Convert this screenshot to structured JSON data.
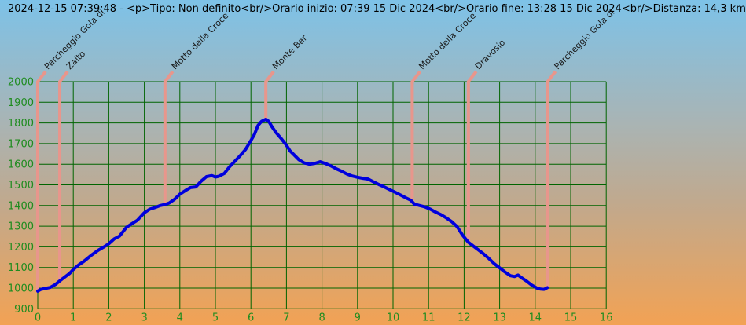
{
  "header": {
    "title": "2024-12-15 07:39:48 - <p>Tipo: Non definito<br/>Orario inizio: 07:39 15 Dic 2024<br/>Orario fine: 13:28 15 Dic 2024<br/>Distanza: 14,3 km"
  },
  "chart_data": {
    "type": "line",
    "title": "2024-12-15 07:39:48 - <p>Tipo: Non definito<br/>Orario inizio: 07:39 15 Dic 2024<br/>Orario fine: 13:28 15 Dic 2024<br/>Distanza: 14,3 km",
    "xlabel": "",
    "ylabel": "",
    "x_unit": "km",
    "y_unit": "m",
    "xlim": [
      0,
      16
    ],
    "ylim": [
      900,
      2000
    ],
    "x_ticks": [
      0,
      1,
      2,
      3,
      4,
      5,
      6,
      7,
      8,
      9,
      10,
      11,
      12,
      13,
      14,
      15,
      16
    ],
    "y_ticks": [
      900,
      1000,
      1100,
      1200,
      1300,
      1400,
      1500,
      1600,
      1700,
      1800,
      1900,
      2000
    ],
    "grid": true,
    "legend": false,
    "colors": {
      "background_top": "#7dc2e8",
      "background_bottom": "#f2a254",
      "grid": "#006400",
      "tick_label": "#1f8c1f",
      "track_line": "#0000dd",
      "waypoint_marker": "#e8968c",
      "waypoint_label": "#1a1a1a",
      "title_text": "#000000"
    },
    "waypoints": [
      {
        "label": "Parcheggio Gola di",
        "km": 0.0,
        "elev": 987
      },
      {
        "label": "Zalto",
        "km": 0.62,
        "elev": 1035
      },
      {
        "label": "Motto della Croce",
        "km": 3.58,
        "elev": 1405
      },
      {
        "label": "Monte Bar",
        "km": 6.42,
        "elev": 1818
      },
      {
        "label": "Motto della Croce",
        "km": 10.54,
        "elev": 1424
      },
      {
        "label": "Dravosio",
        "km": 12.12,
        "elev": 1222
      },
      {
        "label": "Parcheggio Gola di",
        "km": 14.35,
        "elev": 1000
      }
    ],
    "series": [
      {
        "name": "elevation-profile",
        "points_km_m": [
          [
            0.0,
            985
          ],
          [
            0.08,
            993
          ],
          [
            0.2,
            998
          ],
          [
            0.35,
            1003
          ],
          [
            0.5,
            1018
          ],
          [
            0.62,
            1035
          ],
          [
            0.75,
            1052
          ],
          [
            0.9,
            1072
          ],
          [
            1.0,
            1090
          ],
          [
            1.15,
            1112
          ],
          [
            1.3,
            1130
          ],
          [
            1.5,
            1158
          ],
          [
            1.7,
            1183
          ],
          [
            1.85,
            1198
          ],
          [
            2.0,
            1215
          ],
          [
            2.15,
            1238
          ],
          [
            2.3,
            1252
          ],
          [
            2.5,
            1295
          ],
          [
            2.65,
            1312
          ],
          [
            2.8,
            1328
          ],
          [
            3.0,
            1365
          ],
          [
            3.15,
            1382
          ],
          [
            3.3,
            1390
          ],
          [
            3.45,
            1400
          ],
          [
            3.58,
            1405
          ],
          [
            3.7,
            1412
          ],
          [
            3.85,
            1430
          ],
          [
            4.0,
            1455
          ],
          [
            4.15,
            1472
          ],
          [
            4.3,
            1487
          ],
          [
            4.45,
            1490
          ],
          [
            4.6,
            1518
          ],
          [
            4.75,
            1540
          ],
          [
            4.9,
            1545
          ],
          [
            5.0,
            1538
          ],
          [
            5.1,
            1542
          ],
          [
            5.25,
            1555
          ],
          [
            5.4,
            1588
          ],
          [
            5.55,
            1615
          ],
          [
            5.7,
            1642
          ],
          [
            5.85,
            1672
          ],
          [
            6.0,
            1715
          ],
          [
            6.1,
            1745
          ],
          [
            6.2,
            1788
          ],
          [
            6.3,
            1808
          ],
          [
            6.42,
            1818
          ],
          [
            6.5,
            1808
          ],
          [
            6.6,
            1780
          ],
          [
            6.7,
            1755
          ],
          [
            6.85,
            1725
          ],
          [
            7.0,
            1692
          ],
          [
            7.1,
            1665
          ],
          [
            7.2,
            1648
          ],
          [
            7.35,
            1622
          ],
          [
            7.5,
            1606
          ],
          [
            7.65,
            1600
          ],
          [
            7.8,
            1604
          ],
          [
            7.95,
            1612
          ],
          [
            8.1,
            1603
          ],
          [
            8.25,
            1592
          ],
          [
            8.4,
            1578
          ],
          [
            8.55,
            1566
          ],
          [
            8.7,
            1553
          ],
          [
            8.85,
            1543
          ],
          [
            9.0,
            1537
          ],
          [
            9.15,
            1532
          ],
          [
            9.3,
            1528
          ],
          [
            9.45,
            1515
          ],
          [
            9.6,
            1502
          ],
          [
            9.75,
            1490
          ],
          [
            9.9,
            1477
          ],
          [
            10.05,
            1465
          ],
          [
            10.2,
            1452
          ],
          [
            10.35,
            1438
          ],
          [
            10.5,
            1426
          ],
          [
            10.6,
            1407
          ],
          [
            10.75,
            1400
          ],
          [
            10.9,
            1393
          ],
          [
            11.05,
            1382
          ],
          [
            11.2,
            1368
          ],
          [
            11.35,
            1356
          ],
          [
            11.5,
            1340
          ],
          [
            11.65,
            1322
          ],
          [
            11.8,
            1298
          ],
          [
            11.95,
            1258
          ],
          [
            12.12,
            1222
          ],
          [
            12.25,
            1205
          ],
          [
            12.4,
            1185
          ],
          [
            12.55,
            1165
          ],
          [
            12.7,
            1143
          ],
          [
            12.85,
            1118
          ],
          [
            13.0,
            1098
          ],
          [
            13.15,
            1078
          ],
          [
            13.3,
            1060
          ],
          [
            13.42,
            1056
          ],
          [
            13.52,
            1063
          ],
          [
            13.62,
            1050
          ],
          [
            13.75,
            1035
          ],
          [
            13.9,
            1015
          ],
          [
            14.05,
            1000
          ],
          [
            14.15,
            995
          ],
          [
            14.25,
            994
          ],
          [
            14.34,
            1002
          ]
        ]
      }
    ]
  }
}
